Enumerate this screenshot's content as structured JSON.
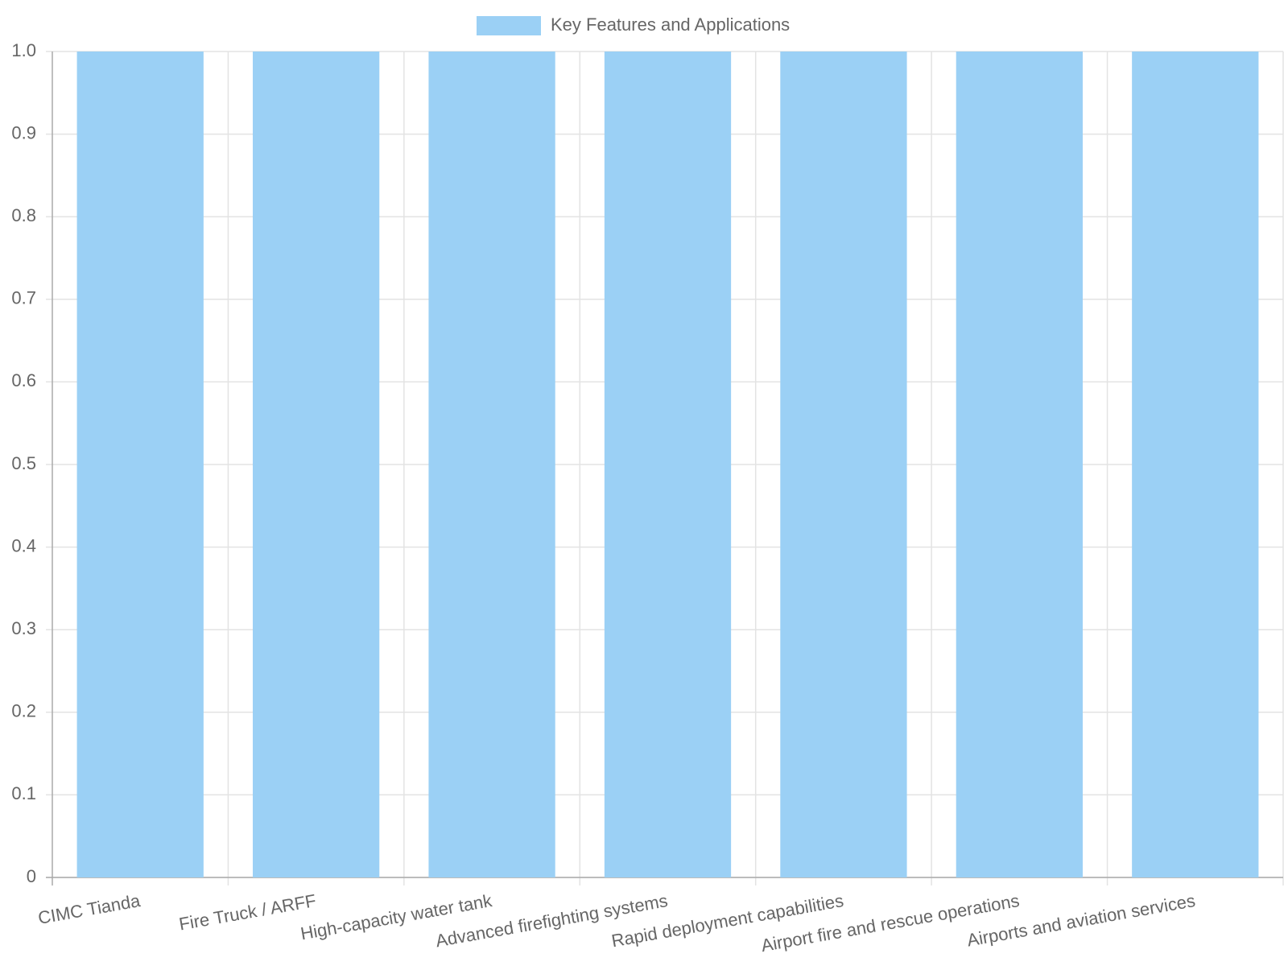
{
  "chart_data": {
    "type": "bar",
    "categories": [
      "CIMC Tianda",
      "Fire Truck / ARFF",
      "High-capacity water tank",
      "Advanced firefighting systems",
      "Rapid deployment capabilities",
      "Airport fire and rescue operations",
      "Airports and aviation services"
    ],
    "series": [
      {
        "name": "Key Features and Applications",
        "color": "#9bd0f5",
        "values": [
          1,
          1,
          1,
          1,
          1,
          1,
          1
        ]
      }
    ],
    "ylim": [
      0,
      1
    ],
    "yticks": [
      0,
      0.1,
      0.2,
      0.3,
      0.4,
      0.5,
      0.6,
      0.7,
      0.8,
      0.9,
      {
        "value": 1,
        "label": "1.0"
      }
    ],
    "grid": true,
    "legend": "top"
  }
}
